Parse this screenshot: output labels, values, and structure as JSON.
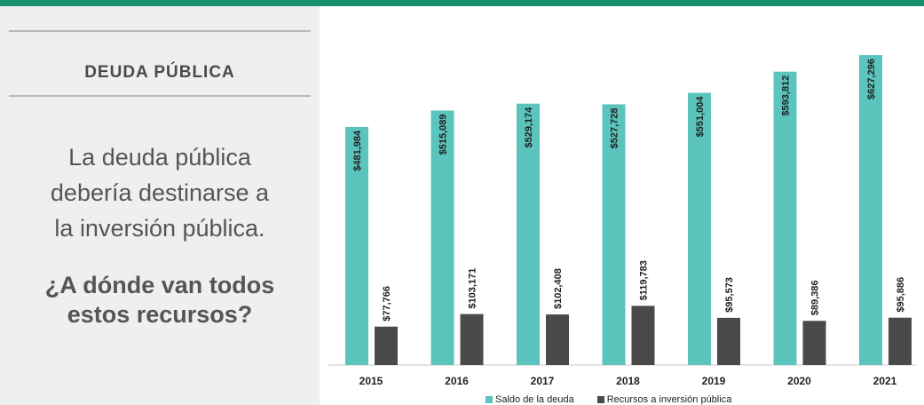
{
  "left_panel": {
    "section_title": "DEUDA PÚBLICA",
    "lead_lines": [
      "La deuda pública",
      "debería destinarse a",
      "la inversión pública."
    ],
    "question_lines": [
      "¿A dónde van todos",
      "estos recursos?"
    ]
  },
  "colors": {
    "accent_bar": "#17926f",
    "panel_bg": "#efefef",
    "debt": "#5bc4bd",
    "investment": "#4a4a4a"
  },
  "chart_data": {
    "type": "bar",
    "categories": [
      "2015",
      "2016",
      "2017",
      "2018",
      "2019",
      "2020",
      "2021"
    ],
    "series": [
      {
        "name": "Saldo de la deuda",
        "values": [
          481984,
          515089,
          529174,
          527728,
          551004,
          593812,
          627296
        ],
        "labels": [
          "$481,984",
          "$515,089",
          "$529,174",
          "$527,728",
          "$551,004",
          "$593,812",
          "$627,296"
        ],
        "color": "#5bc4bd"
      },
      {
        "name": "Recursos a inversión pública",
        "values": [
          77766,
          103171,
          102408,
          119783,
          95573,
          89386,
          95886
        ],
        "labels": [
          "$77,766",
          "$103,171",
          "$102,408",
          "$119,783",
          "$95,573",
          "$89,386",
          "$95,886"
        ],
        "color": "#4a4a4a"
      }
    ],
    "ylim": [
      0,
      640000
    ],
    "grid": false,
    "legend_position": "bottom"
  }
}
